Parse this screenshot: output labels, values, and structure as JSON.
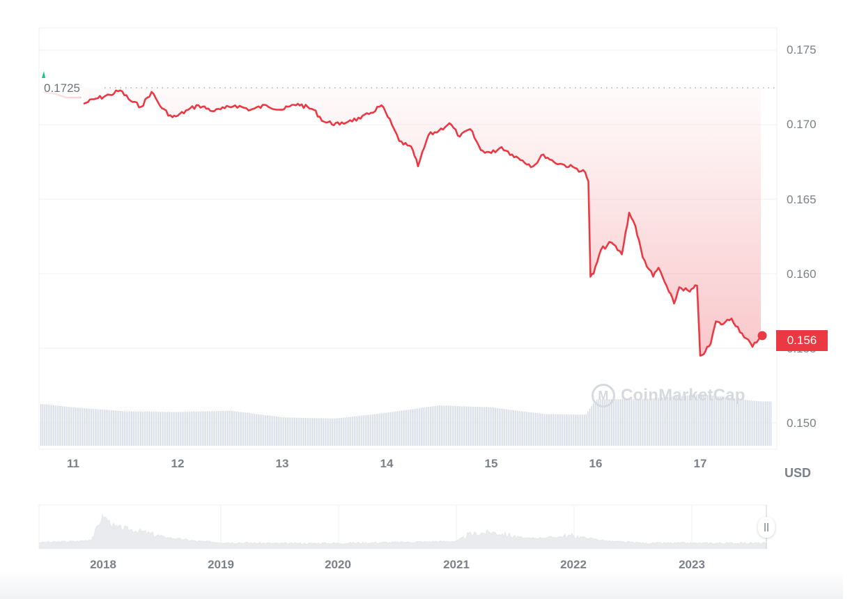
{
  "chart_data": {
    "type": "line",
    "title": "",
    "currency_label": "USD",
    "xlabel": "",
    "ylabel": "USD",
    "ylim": [
      0.1485,
      0.1765
    ],
    "grid": true,
    "legend": "none",
    "y_ticks": [
      "0.175",
      "0.170",
      "0.165",
      "0.160",
      "0.155",
      "0.150"
    ],
    "y_tick_values": [
      0.175,
      0.17,
      0.165,
      0.16,
      0.155,
      0.15
    ],
    "x_ticks": [
      "11",
      "12",
      "13",
      "14",
      "15",
      "16",
      "17"
    ],
    "reference_line": {
      "value": 0.1725,
      "label": "0.1725",
      "style": "dotted"
    },
    "current_price": {
      "value": 0.156,
      "label": "0.156"
    },
    "series": [
      {
        "name": "Price",
        "color": "#ea3943",
        "x": [
          11.1,
          11.2,
          11.35,
          11.45,
          11.55,
          11.65,
          11.75,
          11.85,
          11.95,
          12.0,
          12.1,
          12.2,
          12.35,
          12.45,
          12.55,
          12.7,
          12.85,
          13.0,
          13.15,
          13.3,
          13.4,
          13.55,
          13.65,
          13.75,
          13.85,
          13.95,
          14.05,
          14.12,
          14.2,
          14.25,
          14.3,
          14.4,
          14.5,
          14.6,
          14.7,
          14.8,
          14.9,
          15.0,
          15.1,
          15.2,
          15.3,
          15.4,
          15.5,
          15.6,
          15.7,
          15.8,
          15.9,
          15.93,
          15.95,
          15.98,
          16.05,
          16.15,
          16.25,
          16.32,
          16.38,
          16.45,
          16.55,
          16.6,
          16.7,
          16.75,
          16.8,
          16.9,
          16.97,
          17.0,
          17.05,
          17.1,
          17.15,
          17.2,
          17.3,
          17.4,
          17.5,
          17.58
        ],
        "values": [
          0.1714,
          0.1717,
          0.172,
          0.1723,
          0.1716,
          0.1712,
          0.1722,
          0.1711,
          0.1705,
          0.1706,
          0.171,
          0.1713,
          0.1709,
          0.1711,
          0.1713,
          0.171,
          0.1713,
          0.171,
          0.1714,
          0.171,
          0.1702,
          0.17,
          0.1703,
          0.1704,
          0.1708,
          0.1713,
          0.17,
          0.1689,
          0.1686,
          0.1683,
          0.1672,
          0.1693,
          0.1696,
          0.1701,
          0.1692,
          0.1697,
          0.1683,
          0.1681,
          0.1685,
          0.168,
          0.1676,
          0.1672,
          0.168,
          0.1675,
          0.1673,
          0.1671,
          0.1668,
          0.1662,
          0.1598,
          0.16,
          0.1616,
          0.1621,
          0.1613,
          0.1641,
          0.1632,
          0.1611,
          0.1598,
          0.1604,
          0.1588,
          0.158,
          0.1591,
          0.1588,
          0.1592,
          0.1545,
          0.1548,
          0.1553,
          0.1568,
          0.1566,
          0.157,
          0.156,
          0.1551,
          0.1558
        ]
      },
      {
        "name": "Volume",
        "type": "bar",
        "color": "#cfd6e4",
        "note": "relative volume, unitless",
        "x": [
          10.7,
          11.0,
          11.5,
          12.0,
          12.5,
          13.0,
          13.5,
          14.0,
          14.5,
          15.0,
          15.5,
          15.9,
          16.0,
          16.5,
          17.0,
          17.5,
          17.6
        ],
        "values": [
          0.63,
          0.58,
          0.52,
          0.51,
          0.53,
          0.43,
          0.41,
          0.5,
          0.61,
          0.58,
          0.48,
          0.47,
          0.7,
          0.71,
          0.78,
          0.68,
          0.67
        ]
      }
    ],
    "navigator": {
      "type": "area",
      "x_ticks": [
        "2018",
        "2019",
        "2020",
        "2021",
        "2022",
        "2023"
      ],
      "x": [
        2017.5,
        2017.8,
        2017.9,
        2018.0,
        2018.1,
        2018.3,
        2018.5,
        2018.8,
        2019.0,
        2019.5,
        2020.0,
        2020.5,
        2021.0,
        2021.1,
        2021.3,
        2021.6,
        2021.9,
        2022.0,
        2022.3,
        2022.6,
        2023.0,
        2023.5,
        2023.65
      ],
      "values": [
        0.15,
        0.18,
        0.22,
        0.85,
        0.55,
        0.45,
        0.3,
        0.18,
        0.15,
        0.12,
        0.13,
        0.15,
        0.18,
        0.35,
        0.42,
        0.25,
        0.3,
        0.32,
        0.18,
        0.13,
        0.13,
        0.13,
        0.13
      ]
    }
  },
  "axis": {
    "currency": "USD",
    "y_labels": [
      "0.175",
      "0.170",
      "0.165",
      "0.160",
      "0.155",
      "0.150"
    ],
    "x_labels": [
      "11",
      "12",
      "13",
      "14",
      "15",
      "16",
      "17"
    ],
    "nav_labels": [
      "2018",
      "2019",
      "2020",
      "2021",
      "2022",
      "2023"
    ]
  },
  "labels": {
    "reference_price": "0.1725",
    "current_price": "0.156",
    "watermark": "CoinMarketCap"
  },
  "colors": {
    "down": "#ea3943",
    "up": "#16c784",
    "grid": "#eff2f5",
    "volume": "#cfd6e4",
    "axis_text": "#7b8089"
  }
}
